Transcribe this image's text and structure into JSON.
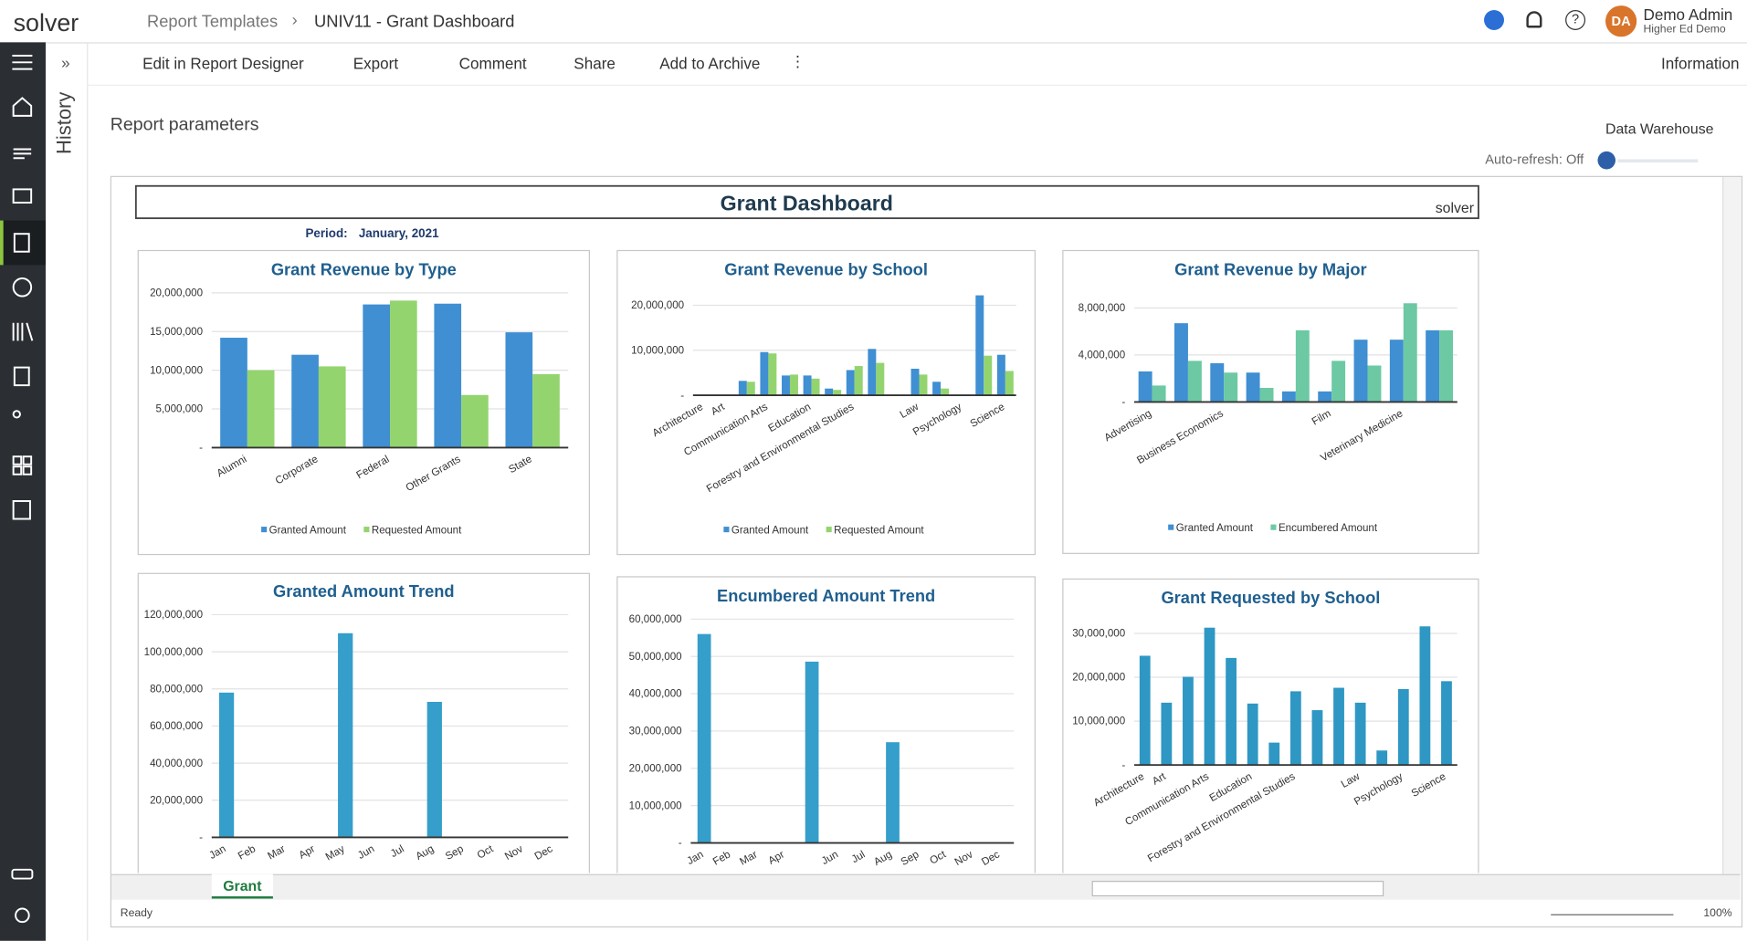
{
  "app": {
    "logo": "solver",
    "breadcrumb": [
      "Report Templates",
      "UNIV11 - Grant Dashboard"
    ],
    "user": {
      "initials": "DA",
      "name": "Demo Admin",
      "org": "Higher Ed Demo"
    }
  },
  "toolbar": [
    "Edit in Report Designer",
    "Export",
    "Comment",
    "Share",
    "Add to Archive"
  ],
  "information": "Information",
  "history": "History",
  "report_parameters": "Report parameters",
  "data_source": "Data Warehouse",
  "auto_refresh": "Auto-refresh: Off",
  "dashboard": {
    "title": "Grant Dashboard",
    "logo": "solver",
    "period_label": "Period:",
    "period": "January, 2021"
  },
  "sheet_tab": "Grant",
  "status": "Ready",
  "zoom": "100%",
  "chart_data": [
    {
      "type": "bar",
      "title": "Grant Revenue by Type",
      "categories": [
        "Alumni",
        "Corporate",
        "Federal",
        "Other Grants",
        "State"
      ],
      "series": [
        {
          "name": "Granted Amount",
          "color": "#3f8fd2",
          "values": [
            14200000,
            12000000,
            18500000,
            18600000,
            14900000
          ]
        },
        {
          "name": "Requested Amount",
          "color": "#93d46f",
          "values": [
            10000000,
            10500000,
            19000000,
            6800000,
            9500000
          ]
        }
      ],
      "ylim": [
        0,
        20000000
      ],
      "yticks": [
        {
          "value": 0,
          "label": "-"
        },
        {
          "value": 5000000,
          "label": "5,000,000"
        },
        {
          "value": 10000000,
          "label": "10,000,000"
        },
        {
          "value": 15000000,
          "label": "15,000,000"
        },
        {
          "value": 20000000,
          "label": "20,000,000"
        }
      ],
      "grid": true
    },
    {
      "type": "bar",
      "title": "Grant Revenue by School",
      "categories": [
        "Architecture",
        "Art",
        null,
        "Communication Arts",
        null,
        "Education",
        null,
        "Forestry and Environmental Studies",
        null,
        null,
        "Law",
        null,
        "Psychology",
        null,
        "Science"
      ],
      "series": [
        {
          "name": "Granted Amount",
          "color": "#3f8fd2",
          "values": [
            0,
            0,
            3200000,
            9600000,
            4400000,
            4400000,
            1500000,
            5600000,
            10300000,
            0,
            5900000,
            3000000,
            0,
            22200000,
            9000000
          ]
        },
        {
          "name": "Requested Amount",
          "color": "#93d46f",
          "values": [
            0,
            0,
            3000000,
            9300000,
            4600000,
            3700000,
            1200000,
            6500000,
            7200000,
            0,
            4600000,
            1500000,
            0,
            8800000,
            5400000
          ]
        }
      ],
      "ylim": [
        0,
        23000000
      ],
      "yticks": [
        {
          "value": 0,
          "label": "-"
        },
        {
          "value": 10000000,
          "label": "10,000,000"
        },
        {
          "value": 20000000,
          "label": "20,000,000"
        }
      ],
      "grid": true
    },
    {
      "type": "bar",
      "title": "Grant Revenue by Major",
      "categories": [
        "Advertising",
        null,
        "Business Economics",
        null,
        null,
        "Film",
        null,
        "Veterinary Medicine",
        null
      ],
      "series": [
        {
          "name": "Granted Amount",
          "color": "#3f8fd2",
          "values": [
            2600000,
            6700000,
            3300000,
            2500000,
            900000,
            900000,
            5300000,
            5300000,
            6100000
          ]
        },
        {
          "name": "Encumbered Amount",
          "color": "#6cc9a3",
          "values": [
            1400000,
            3500000,
            2500000,
            1200000,
            6100000,
            3500000,
            3100000,
            8400000,
            6100000
          ]
        }
      ],
      "ylim": [
        0,
        9000000
      ],
      "yticks": [
        {
          "value": 0,
          "label": "-"
        },
        {
          "value": 4000000,
          "label": "4,000,000"
        },
        {
          "value": 8000000,
          "label": "8,000,000"
        }
      ],
      "grid": true
    },
    {
      "type": "bar",
      "title": "Granted Amount Trend",
      "categories": [
        "Jan",
        "Feb",
        "Mar",
        "Apr",
        "May",
        "Jun",
        "Jul",
        "Aug",
        "Sep",
        "Oct",
        "Nov",
        "Dec"
      ],
      "color": "#359ecb",
      "values": [
        78000000,
        0,
        0,
        0,
        110000000,
        0,
        0,
        73000000,
        0,
        0,
        0,
        0
      ],
      "ylim": [
        0,
        120000000
      ],
      "yticks": [
        {
          "value": 0,
          "label": "-"
        },
        {
          "value": 20000000,
          "label": "20,000,000"
        },
        {
          "value": 40000000,
          "label": "40,000,000"
        },
        {
          "value": 60000000,
          "label": "60,000,000"
        },
        {
          "value": 80000000,
          "label": "80,000,000"
        },
        {
          "value": 100000000,
          "label": "100,000,000"
        },
        {
          "value": 120000000,
          "label": "120,000,000"
        }
      ],
      "grid": true
    },
    {
      "type": "bar",
      "title": "Encumbered Amount Trend",
      "categories": [
        "Jan",
        "Feb",
        "Mar",
        "Apr",
        null,
        "Jun",
        "Jul",
        "Aug",
        "Sep",
        "Oct",
        "Nov",
        "Dec"
      ],
      "color": "#359ecb",
      "values": [
        56000000,
        0,
        0,
        0,
        48600000,
        0,
        0,
        27000000,
        0,
        0,
        0,
        0
      ],
      "ylim": [
        0,
        60000000
      ],
      "yticks": [
        {
          "value": 0,
          "label": "-"
        },
        {
          "value": 10000000,
          "label": "10,000,000"
        },
        {
          "value": 20000000,
          "label": "20,000,000"
        },
        {
          "value": 30000000,
          "label": "30,000,000"
        },
        {
          "value": 40000000,
          "label": "40,000,000"
        },
        {
          "value": 50000000,
          "label": "50,000,000"
        },
        {
          "value": 60000000,
          "label": "60,000,000"
        }
      ],
      "grid": true
    },
    {
      "type": "bar",
      "title": "Grant Requested by School",
      "categories": [
        "Architecture",
        "Art",
        null,
        "Communication Arts",
        null,
        "Education",
        null,
        "Forestry and Environmental Studies",
        null,
        null,
        "Law",
        null,
        "Psychology",
        null,
        "Science"
      ],
      "color": "#2f97c3",
      "values": [
        24900000,
        14200000,
        20100000,
        31300000,
        24400000,
        14000000,
        5100000,
        16800000,
        12500000,
        17600000,
        14200000,
        3300000,
        17300000,
        31600000,
        19100000
      ],
      "ylim": [
        0,
        33000000
      ],
      "yticks": [
        {
          "value": 0,
          "label": "-"
        },
        {
          "value": 10000000,
          "label": "10,000,000"
        },
        {
          "value": 20000000,
          "label": "20,000,000"
        },
        {
          "value": 30000000,
          "label": "30,000,000"
        }
      ],
      "grid": true
    }
  ]
}
